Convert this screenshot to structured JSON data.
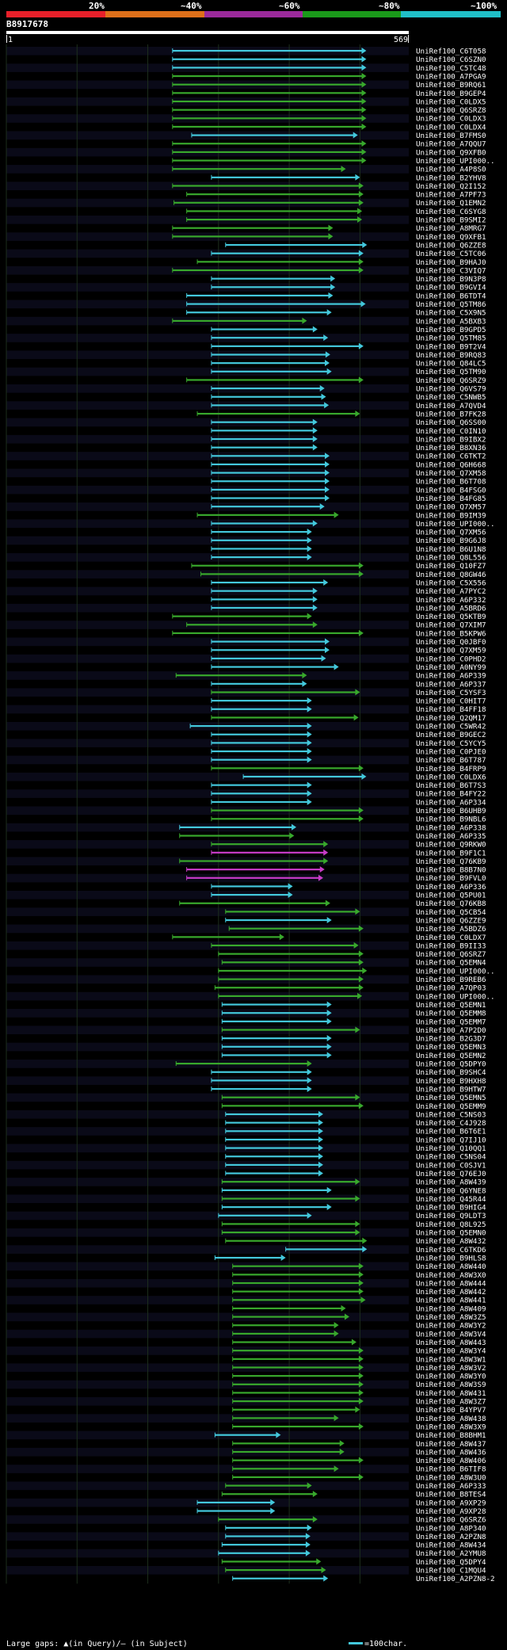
{
  "chart_data": {
    "type": "alignment-overview",
    "query_id": "B8917678",
    "query_start": "1",
    "query_end": "569",
    "query_length": 569,
    "identity_scale": [
      {
        "label": "20%",
        "color": "#e8202a"
      },
      {
        "label": "~40%",
        "color": "#e0701a"
      },
      {
        "label": "~60%",
        "color": "#9c2a9c"
      },
      {
        "label": "~80%",
        "color": "#1a9a1a"
      },
      {
        "label": "~100%",
        "color": "#20c0c8"
      }
    ],
    "color_codes": {
      "c": "#43c8dc",
      "g": "#38a82c",
      "m": "#c83cc8"
    },
    "legend": {
      "gaps_text": "Large gaps: ▲(in Query)/– (in Subject)",
      "scale_text": "=100char.",
      "scale_color": "#43c8dc"
    },
    "hits": [
      [
        "UniRef100_C6T058",
        235,
        509,
        "c"
      ],
      [
        "UniRef100_C6SZN0",
        235,
        509,
        "c"
      ],
      [
        "UniRef100_C5TC48",
        235,
        509,
        "c"
      ],
      [
        "UniRef100_A7PGA9",
        235,
        509,
        "g"
      ],
      [
        "UniRef100_B9RQ61",
        235,
        509,
        "g"
      ],
      [
        "UniRef100_B9GEP4",
        235,
        509,
        "g"
      ],
      [
        "UniRef100_C0LDX5",
        235,
        509,
        "g"
      ],
      [
        "UniRef100_Q6SRZ8",
        235,
        509,
        "g"
      ],
      [
        "UniRef100_C0LDX3",
        235,
        509,
        "g"
      ],
      [
        "UniRef100_C0LDX4",
        235,
        509,
        "g"
      ],
      [
        "UniRef100_B7FMS0",
        262,
        497,
        "c"
      ],
      [
        "UniRef100_A7QQU7",
        235,
        509,
        "g"
      ],
      [
        "UniRef100_Q9XFB0",
        235,
        509,
        "g"
      ],
      [
        "UniRef100_UPI000..",
        235,
        509,
        "g"
      ],
      [
        "UniRef100_A4P8S0",
        235,
        480,
        "g"
      ],
      [
        "UniRef100_B2YHV8",
        290,
        500,
        "c"
      ],
      [
        "UniRef100_Q2I152",
        235,
        505,
        "g"
      ],
      [
        "UniRef100_A7PF73",
        255,
        505,
        "g"
      ],
      [
        "UniRef100_Q1EMN2",
        237,
        505,
        "g"
      ],
      [
        "UniRef100_C6SYG8",
        255,
        503,
        "g"
      ],
      [
        "UniRef100_B9SMI2",
        255,
        503,
        "g"
      ],
      [
        "UniRef100_A8MRG7",
        235,
        462,
        "g"
      ],
      [
        "UniRef100_Q9XFB1",
        235,
        462,
        "g"
      ],
      [
        "UniRef100_Q6ZZE8",
        310,
        510,
        "c"
      ],
      [
        "UniRef100_C5TC06",
        290,
        505,
        "c"
      ],
      [
        "UniRef100_B9HAJ0",
        270,
        505,
        "g"
      ],
      [
        "UniRef100_C3VIQ7",
        235,
        505,
        "g"
      ],
      [
        "UniRef100_B9N3P8",
        290,
        465,
        "c"
      ],
      [
        "UniRef100_B9GVI4",
        290,
        465,
        "c"
      ],
      [
        "UniRef100_B6TDT4",
        255,
        462,
        "c"
      ],
      [
        "UniRef100_Q5TM86",
        255,
        508,
        "c"
      ],
      [
        "UniRef100_C5X9N5",
        255,
        460,
        "c"
      ],
      [
        "UniRef100_A5BXB3",
        235,
        425,
        "g"
      ],
      [
        "UniRef100_B9GPD5",
        290,
        440,
        "c"
      ],
      [
        "UniRef100_Q5TM85",
        290,
        455,
        "c"
      ],
      [
        "UniRef100_B9T2V4",
        290,
        505,
        "c"
      ],
      [
        "UniRef100_B9RQ83",
        290,
        458,
        "c"
      ],
      [
        "UniRef100_Q84LC5",
        290,
        457,
        "c"
      ],
      [
        "UniRef100_Q5TM90",
        290,
        460,
        "c"
      ],
      [
        "UniRef100_Q6SRZ9",
        255,
        505,
        "g"
      ],
      [
        "UniRef100_Q6VS79",
        290,
        450,
        "c"
      ],
      [
        "UniRef100_C5NWB5",
        290,
        452,
        "c"
      ],
      [
        "UniRef100_A7QVD4",
        290,
        456,
        "c"
      ],
      [
        "UniRef100_B7FK28",
        270,
        500,
        "g"
      ],
      [
        "UniRef100_Q6SS00",
        290,
        440,
        "c"
      ],
      [
        "UniRef100_C0IN10",
        290,
        440,
        "c"
      ],
      [
        "UniRef100_B9IBX2",
        290,
        440,
        "c"
      ],
      [
        "UniRef100_B8XN36",
        290,
        440,
        "c"
      ],
      [
        "UniRef100_C6TKT2",
        290,
        457,
        "c"
      ],
      [
        "UniRef100_Q6H668",
        290,
        457,
        "c"
      ],
      [
        "UniRef100_Q7XM58",
        290,
        457,
        "c"
      ],
      [
        "UniRef100_B6T708",
        290,
        457,
        "c"
      ],
      [
        "UniRef100_B4FSG0",
        290,
        457,
        "c"
      ],
      [
        "UniRef100_B4FG85",
        290,
        457,
        "c"
      ],
      [
        "UniRef100_Q7XM57",
        290,
        450,
        "c"
      ],
      [
        "UniRef100_B9IM39",
        270,
        470,
        "g"
      ],
      [
        "UniRef100_UPI000..",
        290,
        440,
        "c"
      ],
      [
        "UniRef100_Q7XM56",
        290,
        432,
        "c"
      ],
      [
        "UniRef100_B9G6J8",
        290,
        432,
        "c"
      ],
      [
        "UniRef100_B6U1N8",
        290,
        432,
        "c"
      ],
      [
        "UniRef100_Q8L556",
        290,
        432,
        "c"
      ],
      [
        "UniRef100_Q10FZ7",
        262,
        505,
        "g"
      ],
      [
        "UniRef100_Q8GW46",
        275,
        505,
        "g"
      ],
      [
        "UniRef100_C5X556",
        290,
        455,
        "c"
      ],
      [
        "UniRef100_A7PYC2",
        290,
        440,
        "c"
      ],
      [
        "UniRef100_A6P332",
        290,
        440,
        "c"
      ],
      [
        "UniRef100_A5BRD6",
        290,
        440,
        "c"
      ],
      [
        "UniRef100_Q5KTB9",
        235,
        432,
        "g"
      ],
      [
        "UniRef100_Q7XIM7",
        255,
        440,
        "g"
      ],
      [
        "UniRef100_B5KPW6",
        235,
        505,
        "g"
      ],
      [
        "UniRef100_Q0JBF0",
        290,
        457,
        "c"
      ],
      [
        "UniRef100_Q7XM59",
        290,
        457,
        "c"
      ],
      [
        "UniRef100_C0PHD2",
        290,
        452,
        "c"
      ],
      [
        "UniRef100_A0NY99",
        290,
        470,
        "c"
      ],
      [
        "UniRef100_A6P339",
        240,
        425,
        "g"
      ],
      [
        "UniRef100_A6P337",
        290,
        425,
        "c"
      ],
      [
        "UniRef100_C5YSF3",
        290,
        500,
        "g"
      ],
      [
        "UniRef100_C0HIT7",
        290,
        432,
        "c"
      ],
      [
        "UniRef100_B4FF18",
        290,
        432,
        "c"
      ],
      [
        "UniRef100_Q2QM17",
        290,
        498,
        "g"
      ],
      [
        "UniRef100_C5WR42",
        260,
        432,
        "c"
      ],
      [
        "UniRef100_B9GEC2",
        290,
        432,
        "c"
      ],
      [
        "UniRef100_C5YCY5",
        290,
        432,
        "c"
      ],
      [
        "UniRef100_C0PJE0",
        290,
        432,
        "c"
      ],
      [
        "UniRef100_B6T787",
        290,
        432,
        "c"
      ],
      [
        "UniRef100_B4FRP9",
        290,
        505,
        "g"
      ],
      [
        "UniRef100_C0LDX6",
        335,
        509,
        "c"
      ],
      [
        "UniRef100_B6T7S3",
        290,
        432,
        "c"
      ],
      [
        "UniRef100_B4FY22",
        290,
        432,
        "c"
      ],
      [
        "UniRef100_A6P334",
        290,
        432,
        "c"
      ],
      [
        "UniRef100_B6UHB9",
        290,
        505,
        "g"
      ],
      [
        "UniRef100_B9NBL6",
        290,
        505,
        "g"
      ],
      [
        "UniRef100_A6P338",
        245,
        410,
        "c"
      ],
      [
        "UniRef100_A6P335",
        245,
        407,
        "g"
      ],
      [
        "UniRef100_Q9RKW0",
        290,
        455,
        "g"
      ],
      [
        "UniRef100_B9F1C1",
        290,
        455,
        "m"
      ],
      [
        "UniRef100_Q76KB9",
        245,
        455,
        "g"
      ],
      [
        "UniRef100_B8B7N0",
        255,
        450,
        "m"
      ],
      [
        "UniRef100_B9FVL0",
        255,
        448,
        "m"
      ],
      [
        "UniRef100_A6P336",
        290,
        405,
        "c"
      ],
      [
        "UniRef100_Q5PU01",
        290,
        405,
        "c"
      ],
      [
        "UniRef100_Q76KB8",
        245,
        458,
        "g"
      ],
      [
        "UniRef100_Q5CB54",
        310,
        500,
        "g"
      ],
      [
        "UniRef100_Q6ZZE9",
        310,
        460,
        "c"
      ],
      [
        "UniRef100_A5BDZ6",
        315,
        505,
        "g"
      ],
      [
        "UniRef100_C0LDX7",
        235,
        393,
        "g"
      ],
      [
        "UniRef100_B9II33",
        290,
        498,
        "g"
      ],
      [
        "UniRef100_Q6SRZ7",
        300,
        505,
        "g"
      ],
      [
        "UniRef100_Q5EMN4",
        305,
        505,
        "g"
      ],
      [
        "UniRef100_UPI000..",
        300,
        510,
        "g"
      ],
      [
        "UniRef100_B9REB6",
        300,
        505,
        "g"
      ],
      [
        "UniRef100_A7QP03",
        295,
        505,
        "g"
      ],
      [
        "UniRef100_UPI000..",
        300,
        503,
        "g"
      ],
      [
        "UniRef100_Q5EMN1",
        305,
        460,
        "c"
      ],
      [
        "UniRef100_Q5EMM8",
        305,
        460,
        "c"
      ],
      [
        "UniRef100_Q5EMM7",
        305,
        460,
        "c"
      ],
      [
        "UniRef100_A7P2D0",
        305,
        500,
        "g"
      ],
      [
        "UniRef100_B2G3D7",
        305,
        460,
        "c"
      ],
      [
        "UniRef100_Q5EMN3",
        305,
        460,
        "c"
      ],
      [
        "UniRef100_Q5EMN2",
        305,
        460,
        "c"
      ],
      [
        "UniRef100_Q5DPY0",
        240,
        432,
        "g"
      ],
      [
        "UniRef100_B9SHC4",
        290,
        432,
        "c"
      ],
      [
        "UniRef100_B9HXH8",
        290,
        432,
        "c"
      ],
      [
        "UniRef100_B9HTW7",
        290,
        432,
        "c"
      ],
      [
        "UniRef100_Q5EMN5",
        305,
        500,
        "g"
      ],
      [
        "UniRef100_Q5EMM9",
        305,
        505,
        "g"
      ],
      [
        "UniRef100_C5NS03",
        310,
        448,
        "c"
      ],
      [
        "UniRef100_C4J928",
        310,
        448,
        "c"
      ],
      [
        "UniRef100_B6T6E1",
        310,
        448,
        "c"
      ],
      [
        "UniRef100_Q7IJ10",
        310,
        448,
        "c"
      ],
      [
        "UniRef100_Q10QQ1",
        310,
        448,
        "c"
      ],
      [
        "UniRef100_C5NS04",
        310,
        448,
        "c"
      ],
      [
        "UniRef100_C0SJV1",
        310,
        448,
        "c"
      ],
      [
        "UniRef100_Q76EJ0",
        310,
        448,
        "c"
      ],
      [
        "UniRef100_A8W439",
        305,
        500,
        "g"
      ],
      [
        "UniRef100_Q6YNE8",
        305,
        460,
        "c"
      ],
      [
        "UniRef100_Q45R44",
        305,
        500,
        "g"
      ],
      [
        "UniRef100_B9HIG4",
        305,
        460,
        "c"
      ],
      [
        "UniRef100_Q9LDT3",
        300,
        432,
        "c"
      ],
      [
        "UniRef100_Q8L925",
        305,
        500,
        "g"
      ],
      [
        "UniRef100_Q5EMN0",
        305,
        500,
        "g"
      ],
      [
        "UniRef100_A8W432",
        310,
        510,
        "g"
      ],
      [
        "UniRef100_C6TKD6",
        395,
        510,
        "c"
      ],
      [
        "UniRef100_B9HLS8",
        295,
        395,
        "c"
      ],
      [
        "UniRef100_A8W440",
        320,
        505,
        "g"
      ],
      [
        "UniRef100_A8W3X0",
        320,
        505,
        "g"
      ],
      [
        "UniRef100_A8W444",
        320,
        505,
        "g"
      ],
      [
        "UniRef100_A8W442",
        320,
        505,
        "g"
      ],
      [
        "UniRef100_A8W441",
        320,
        508,
        "g"
      ],
      [
        "UniRef100_A8W409",
        320,
        480,
        "g"
      ],
      [
        "UniRef100_A8W3Z5",
        320,
        485,
        "g"
      ],
      [
        "UniRef100_A8W3Y2",
        320,
        470,
        "g"
      ],
      [
        "UniRef100_A8W3V4",
        320,
        470,
        "g"
      ],
      [
        "UniRef100_A8W443",
        320,
        495,
        "g"
      ],
      [
        "UniRef100_A8W3Y4",
        320,
        505,
        "g"
      ],
      [
        "UniRef100_A8W3W1",
        320,
        505,
        "g"
      ],
      [
        "UniRef100_A8W3V2",
        320,
        505,
        "g"
      ],
      [
        "UniRef100_A8W3Y0",
        320,
        505,
        "g"
      ],
      [
        "UniRef100_A8W3S9",
        320,
        505,
        "g"
      ],
      [
        "UniRef100_A8W431",
        320,
        505,
        "g"
      ],
      [
        "UniRef100_A8W3Z7",
        320,
        505,
        "g"
      ],
      [
        "UniRef100_B4YPV7",
        320,
        500,
        "g"
      ],
      [
        "UniRef100_A8W438",
        320,
        470,
        "g"
      ],
      [
        "UniRef100_A8W3X9",
        320,
        505,
        "g"
      ],
      [
        "UniRef100_B8BHM1",
        295,
        388,
        "c"
      ],
      [
        "UniRef100_A8W437",
        320,
        478,
        "g"
      ],
      [
        "UniRef100_A8W436",
        320,
        478,
        "g"
      ],
      [
        "UniRef100_A8W406",
        320,
        505,
        "g"
      ],
      [
        "UniRef100_B6TIF8",
        320,
        470,
        "g"
      ],
      [
        "UniRef100_A8W3U0",
        320,
        505,
        "g"
      ],
      [
        "UniRef100_A6P333",
        310,
        432,
        "g"
      ],
      [
        "UniRef100_B8TES4",
        305,
        440,
        "g"
      ],
      [
        "UniRef100_A9XP29",
        270,
        380,
        "c"
      ],
      [
        "UniRef100_A9XP28",
        270,
        380,
        "c"
      ],
      [
        "UniRef100_Q6SRZ6",
        300,
        440,
        "g"
      ],
      [
        "UniRef100_A8P340",
        310,
        432,
        "c"
      ],
      [
        "UniRef100_A2PZN8",
        310,
        430,
        "c"
      ],
      [
        "UniRef100_A8W434",
        305,
        430,
        "c"
      ],
      [
        "UniRef100_A2YMU8",
        300,
        430,
        "c"
      ],
      [
        "UniRef100_Q5DPY4",
        305,
        445,
        "g"
      ],
      [
        "UniRef100_C1MQU4",
        310,
        452,
        "g"
      ],
      [
        "UniRef100_A2PZN8-2",
        320,
        455,
        "c"
      ]
    ]
  }
}
